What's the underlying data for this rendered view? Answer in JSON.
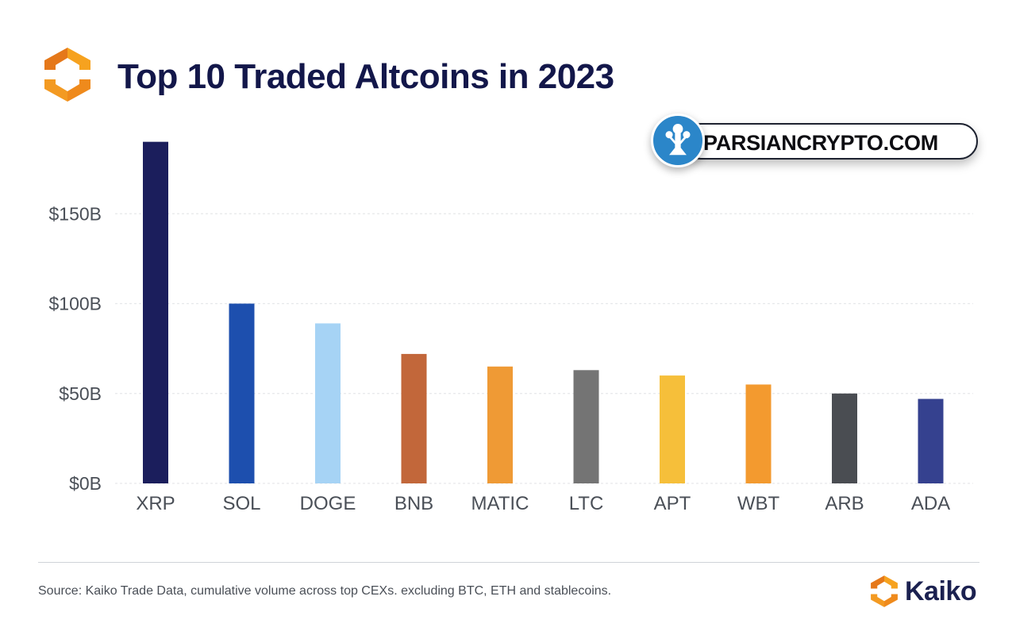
{
  "title": "Top 10 Traded Altcoins in 2023",
  "watermark": {
    "text": "PARSIANCRYPTO.COM"
  },
  "source_note": "Source: Kaiko Trade Data, cumulative volume across top CEXs. excluding BTC, ETH and stablecoins.",
  "brand": {
    "name": "Kaiko"
  },
  "colors": {
    "title": "#13174a",
    "grid": "#e6e8ea",
    "axis_text": "#4a4f57",
    "logo_orange": "#f39a22",
    "logo_orange_dark": "#e5781a"
  },
  "chart_data": {
    "type": "bar",
    "title": "Top 10 Traded Altcoins in 2023",
    "xlabel": "",
    "ylabel": "",
    "categories": [
      "XRP",
      "SOL",
      "DOGE",
      "BNB",
      "MATIC",
      "LTC",
      "APT",
      "WBT",
      "ARB",
      "ADA"
    ],
    "values": [
      190,
      100,
      89,
      72,
      65,
      63,
      60,
      55,
      50,
      47
    ],
    "unit_prefix": "$",
    "unit_suffix": "B",
    "bar_colors": [
      "#1b1e5c",
      "#1d4fae",
      "#a6d3f5",
      "#c2673a",
      "#ef9a35",
      "#747474",
      "#f6bf3a",
      "#f39a2f",
      "#4a4d52",
      "#35418f"
    ],
    "yticks": [
      0,
      50,
      100,
      150
    ],
    "ytick_labels": [
      "$0B",
      "$50B",
      "$100B",
      "$150B"
    ],
    "ylim": [
      0,
      195
    ],
    "grid": true,
    "legend": "none"
  }
}
